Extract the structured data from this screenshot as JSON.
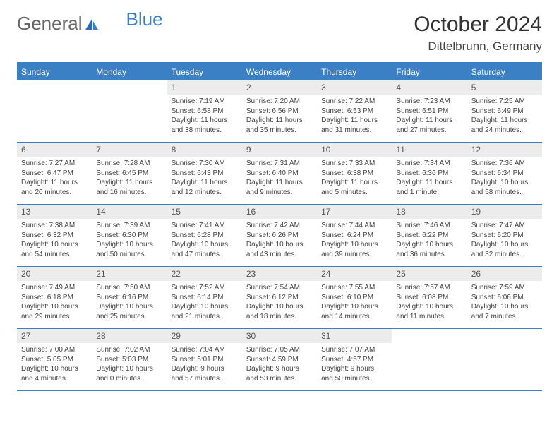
{
  "brand": {
    "part1": "General",
    "part2": "Blue",
    "accent": "#3b7fc4"
  },
  "title": "October 2024",
  "location": "Dittelbrunn, Germany",
  "colors": {
    "header_bg": "#3b7fc4",
    "header_text": "#ffffff",
    "daynum_bg": "#ececec",
    "border": "#3b7fc4",
    "body_text": "#444444",
    "page_bg": "#ffffff"
  },
  "typography": {
    "title_fontsize": 30,
    "location_fontsize": 17,
    "dayhead_fontsize": 12,
    "daynum_fontsize": 12,
    "body_fontsize": 10
  },
  "day_names": [
    "Sunday",
    "Monday",
    "Tuesday",
    "Wednesday",
    "Thursday",
    "Friday",
    "Saturday"
  ],
  "weeks": [
    [
      null,
      null,
      {
        "n": "1",
        "sr": "Sunrise: 7:19 AM",
        "ss": "Sunset: 6:58 PM",
        "dl": "Daylight: 11 hours and 38 minutes."
      },
      {
        "n": "2",
        "sr": "Sunrise: 7:20 AM",
        "ss": "Sunset: 6:56 PM",
        "dl": "Daylight: 11 hours and 35 minutes."
      },
      {
        "n": "3",
        "sr": "Sunrise: 7:22 AM",
        "ss": "Sunset: 6:53 PM",
        "dl": "Daylight: 11 hours and 31 minutes."
      },
      {
        "n": "4",
        "sr": "Sunrise: 7:23 AM",
        "ss": "Sunset: 6:51 PM",
        "dl": "Daylight: 11 hours and 27 minutes."
      },
      {
        "n": "5",
        "sr": "Sunrise: 7:25 AM",
        "ss": "Sunset: 6:49 PM",
        "dl": "Daylight: 11 hours and 24 minutes."
      }
    ],
    [
      {
        "n": "6",
        "sr": "Sunrise: 7:27 AM",
        "ss": "Sunset: 6:47 PM",
        "dl": "Daylight: 11 hours and 20 minutes."
      },
      {
        "n": "7",
        "sr": "Sunrise: 7:28 AM",
        "ss": "Sunset: 6:45 PM",
        "dl": "Daylight: 11 hours and 16 minutes."
      },
      {
        "n": "8",
        "sr": "Sunrise: 7:30 AM",
        "ss": "Sunset: 6:43 PM",
        "dl": "Daylight: 11 hours and 12 minutes."
      },
      {
        "n": "9",
        "sr": "Sunrise: 7:31 AM",
        "ss": "Sunset: 6:40 PM",
        "dl": "Daylight: 11 hours and 9 minutes."
      },
      {
        "n": "10",
        "sr": "Sunrise: 7:33 AM",
        "ss": "Sunset: 6:38 PM",
        "dl": "Daylight: 11 hours and 5 minutes."
      },
      {
        "n": "11",
        "sr": "Sunrise: 7:34 AM",
        "ss": "Sunset: 6:36 PM",
        "dl": "Daylight: 11 hours and 1 minute."
      },
      {
        "n": "12",
        "sr": "Sunrise: 7:36 AM",
        "ss": "Sunset: 6:34 PM",
        "dl": "Daylight: 10 hours and 58 minutes."
      }
    ],
    [
      {
        "n": "13",
        "sr": "Sunrise: 7:38 AM",
        "ss": "Sunset: 6:32 PM",
        "dl": "Daylight: 10 hours and 54 minutes."
      },
      {
        "n": "14",
        "sr": "Sunrise: 7:39 AM",
        "ss": "Sunset: 6:30 PM",
        "dl": "Daylight: 10 hours and 50 minutes."
      },
      {
        "n": "15",
        "sr": "Sunrise: 7:41 AM",
        "ss": "Sunset: 6:28 PM",
        "dl": "Daylight: 10 hours and 47 minutes."
      },
      {
        "n": "16",
        "sr": "Sunrise: 7:42 AM",
        "ss": "Sunset: 6:26 PM",
        "dl": "Daylight: 10 hours and 43 minutes."
      },
      {
        "n": "17",
        "sr": "Sunrise: 7:44 AM",
        "ss": "Sunset: 6:24 PM",
        "dl": "Daylight: 10 hours and 39 minutes."
      },
      {
        "n": "18",
        "sr": "Sunrise: 7:46 AM",
        "ss": "Sunset: 6:22 PM",
        "dl": "Daylight: 10 hours and 36 minutes."
      },
      {
        "n": "19",
        "sr": "Sunrise: 7:47 AM",
        "ss": "Sunset: 6:20 PM",
        "dl": "Daylight: 10 hours and 32 minutes."
      }
    ],
    [
      {
        "n": "20",
        "sr": "Sunrise: 7:49 AM",
        "ss": "Sunset: 6:18 PM",
        "dl": "Daylight: 10 hours and 29 minutes."
      },
      {
        "n": "21",
        "sr": "Sunrise: 7:50 AM",
        "ss": "Sunset: 6:16 PM",
        "dl": "Daylight: 10 hours and 25 minutes."
      },
      {
        "n": "22",
        "sr": "Sunrise: 7:52 AM",
        "ss": "Sunset: 6:14 PM",
        "dl": "Daylight: 10 hours and 21 minutes."
      },
      {
        "n": "23",
        "sr": "Sunrise: 7:54 AM",
        "ss": "Sunset: 6:12 PM",
        "dl": "Daylight: 10 hours and 18 minutes."
      },
      {
        "n": "24",
        "sr": "Sunrise: 7:55 AM",
        "ss": "Sunset: 6:10 PM",
        "dl": "Daylight: 10 hours and 14 minutes."
      },
      {
        "n": "25",
        "sr": "Sunrise: 7:57 AM",
        "ss": "Sunset: 6:08 PM",
        "dl": "Daylight: 10 hours and 11 minutes."
      },
      {
        "n": "26",
        "sr": "Sunrise: 7:59 AM",
        "ss": "Sunset: 6:06 PM",
        "dl": "Daylight: 10 hours and 7 minutes."
      }
    ],
    [
      {
        "n": "27",
        "sr": "Sunrise: 7:00 AM",
        "ss": "Sunset: 5:05 PM",
        "dl": "Daylight: 10 hours and 4 minutes."
      },
      {
        "n": "28",
        "sr": "Sunrise: 7:02 AM",
        "ss": "Sunset: 5:03 PM",
        "dl": "Daylight: 10 hours and 0 minutes."
      },
      {
        "n": "29",
        "sr": "Sunrise: 7:04 AM",
        "ss": "Sunset: 5:01 PM",
        "dl": "Daylight: 9 hours and 57 minutes."
      },
      {
        "n": "30",
        "sr": "Sunrise: 7:05 AM",
        "ss": "Sunset: 4:59 PM",
        "dl": "Daylight: 9 hours and 53 minutes."
      },
      {
        "n": "31",
        "sr": "Sunrise: 7:07 AM",
        "ss": "Sunset: 4:57 PM",
        "dl": "Daylight: 9 hours and 50 minutes."
      },
      null,
      null
    ]
  ]
}
